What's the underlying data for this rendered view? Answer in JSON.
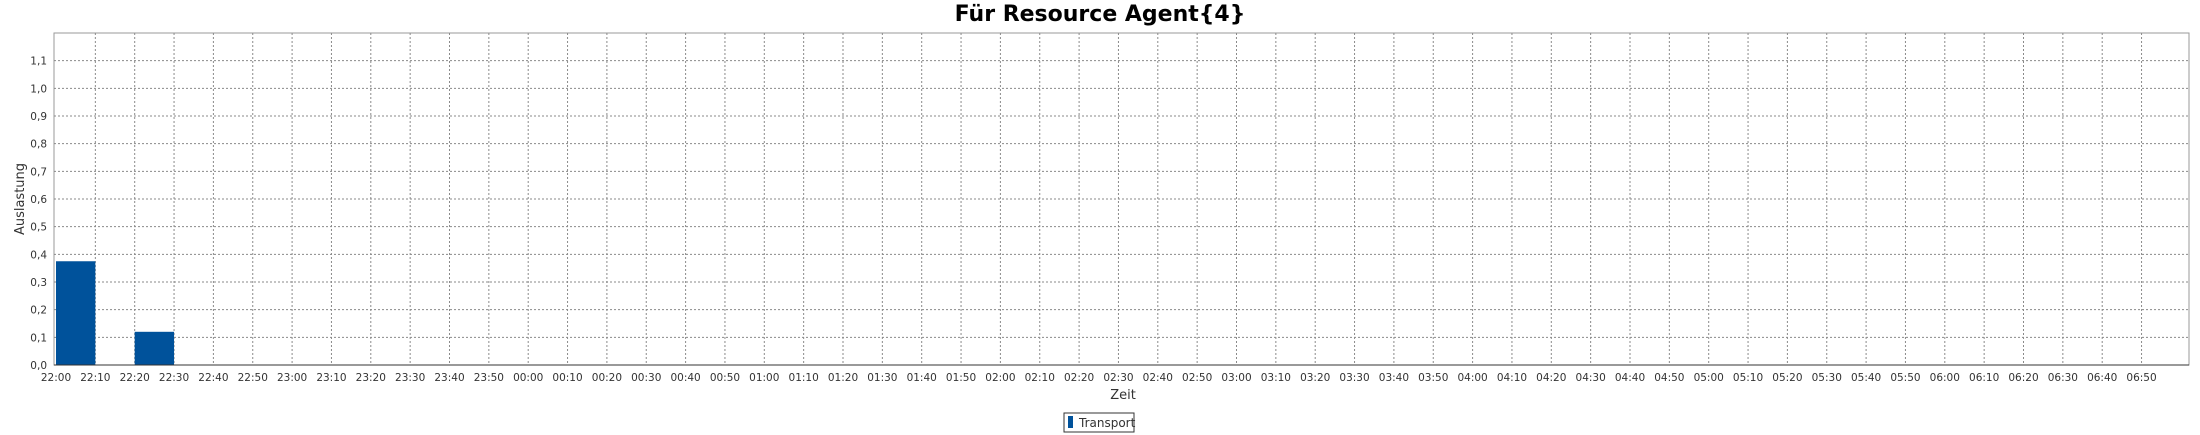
{
  "chart_data": {
    "type": "bar",
    "title": "Für Resource Agent{4}",
    "xlabel": "Zeit",
    "ylabel": "Auslastung",
    "categories": [
      "22:00",
      "22:10",
      "22:20",
      "22:30",
      "22:40",
      "22:50",
      "23:00",
      "23:10",
      "23:20",
      "23:30",
      "23:40",
      "23:50",
      "00:00",
      "00:10",
      "00:20",
      "00:30",
      "00:40",
      "00:50",
      "01:00",
      "01:10",
      "01:20",
      "01:30",
      "01:40",
      "01:50",
      "02:00",
      "02:10",
      "02:20",
      "02:30",
      "02:40",
      "02:50",
      "03:00",
      "03:10",
      "03:20",
      "03:30",
      "03:40",
      "03:50",
      "04:00",
      "04:10",
      "04:20",
      "04:30",
      "04:40",
      "04:50",
      "05:00",
      "05:10",
      "05:20",
      "05:30",
      "05:40",
      "05:50",
      "06:00",
      "06:10",
      "06:20",
      "06:30",
      "06:40",
      "06:50"
    ],
    "series": [
      {
        "name": "Transport",
        "color": "#00529b",
        "values": [
          0.375,
          0,
          0.12,
          0,
          0,
          0,
          0,
          0,
          0,
          0,
          0,
          0,
          0,
          0,
          0,
          0,
          0,
          0,
          0,
          0,
          0,
          0,
          0,
          0,
          0,
          0,
          0,
          0,
          0,
          0,
          0,
          0,
          0,
          0,
          0,
          0,
          0,
          0,
          0,
          0,
          0,
          0,
          0,
          0,
          0,
          0,
          0,
          0,
          0,
          0,
          0,
          0,
          0,
          0
        ]
      }
    ],
    "yticks": [
      "0,0",
      "0,1",
      "0,2",
      "0,3",
      "0,4",
      "0,5",
      "0,6",
      "0,7",
      "0,8",
      "0,9",
      "1,0",
      "1,1"
    ],
    "ylim": [
      0,
      1.2
    ],
    "grid": true,
    "legend_position": "bottom-center"
  }
}
